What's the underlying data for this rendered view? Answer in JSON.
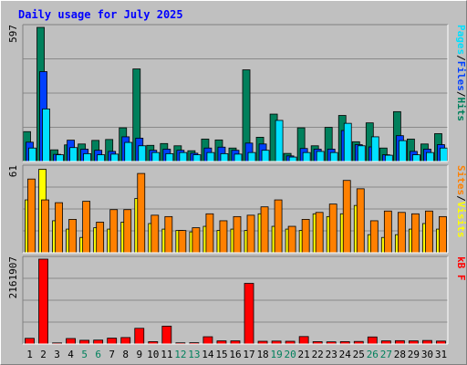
{
  "chart_data": {
    "type": "bar",
    "title": "Daily usage for July 2025",
    "categories": [
      "1",
      "2",
      "3",
      "4",
      "5",
      "6",
      "7",
      "8",
      "9",
      "10",
      "11",
      "12",
      "13",
      "14",
      "15",
      "16",
      "17",
      "18",
      "19",
      "20",
      "21",
      "22",
      "23",
      "24",
      "25",
      "26",
      "27",
      "28",
      "29",
      "30",
      "31"
    ],
    "weekend_days": [
      5,
      6,
      12,
      13,
      19,
      20,
      26,
      27
    ],
    "colors": {
      "hits": "#00805c",
      "files": "#0040ff",
      "pages": "#00e0ff",
      "visits": "#ffff00",
      "sites": "#ff8000",
      "kbytes": "#ff0000",
      "weekend_label": "#00805c",
      "title": "#0000ff"
    },
    "panels": [
      {
        "id": "hits",
        "ymax_label": "597",
        "ymax": 597,
        "legend": [
          "Pages",
          "/",
          "Files",
          "/",
          "Hits"
        ],
        "series": [
          {
            "name": "Hits",
            "values": [
              133,
              597,
              52,
              74,
              78,
              94,
              98,
              150,
              412,
              72,
              80,
              70,
              48,
              100,
              96,
              60,
              408,
              108,
              211,
              36,
              150,
              70,
              152,
              205,
              88,
              172,
              60,
              222,
              100,
              78,
              124
            ]
          },
          {
            "name": "Files",
            "values": [
              86,
              400,
              32,
              95,
              55,
              50,
              45,
              110,
              104,
              50,
              55,
              50,
              37,
              60,
              64,
              50,
              82,
              78,
              0,
              25,
              58,
              55,
              55,
              138,
              75,
              65,
              30,
              115,
              45,
              55,
              75
            ]
          },
          {
            "name": "Pages",
            "values": [
              60,
              234,
              30,
              62,
              35,
              30,
              33,
              85,
              70,
              40,
              35,
              40,
              30,
              40,
              35,
              33,
              40,
              50,
              183,
              20,
              40,
              45,
              40,
              170,
              70,
              110,
              28,
              93,
              30,
              40,
              60
            ]
          }
        ]
      },
      {
        "id": "visits",
        "ymax_label": "61",
        "ymax": 61,
        "legend": [
          "Sites",
          "/",
          "Visits"
        ],
        "series": [
          {
            "name": "Visits",
            "values": [
              38,
              60,
              23,
              17,
              11,
              18,
              17,
              22,
              39,
              21,
              17,
              16,
              15,
              19,
              16,
              17,
              16,
              28,
              19,
              17,
              16,
              28,
              26,
              28,
              34,
              13,
              11,
              13,
              17,
              21,
              17
            ]
          },
          {
            "name": "Sites",
            "values": [
              53,
              38,
              36,
              24,
              37,
              22,
              31,
              31,
              57,
              27,
              26,
              16,
              18,
              28,
              23,
              26,
              27,
              33,
              38,
              19,
              24,
              29,
              35,
              52,
              46,
              23,
              30,
              29,
              28,
              30,
              26
            ]
          }
        ]
      },
      {
        "id": "kbytes",
        "ymax_label": "2161907",
        "ymax": 2161907,
        "legend": [
          "kB",
          " ",
          "F"
        ],
        "series": [
          {
            "name": "kB F",
            "values": [
              145000,
              2161907,
              28000,
              140000,
              95000,
              100000,
              150000,
              165000,
              400000,
              60000,
              455000,
              30000,
              33000,
              185000,
              80000,
              80000,
              1545000,
              70000,
              75000,
              70000,
              190000,
              60000,
              55000,
              60000,
              65000,
              180000,
              80000,
              85000,
              80000,
              90000,
              75000
            ]
          }
        ]
      }
    ]
  }
}
